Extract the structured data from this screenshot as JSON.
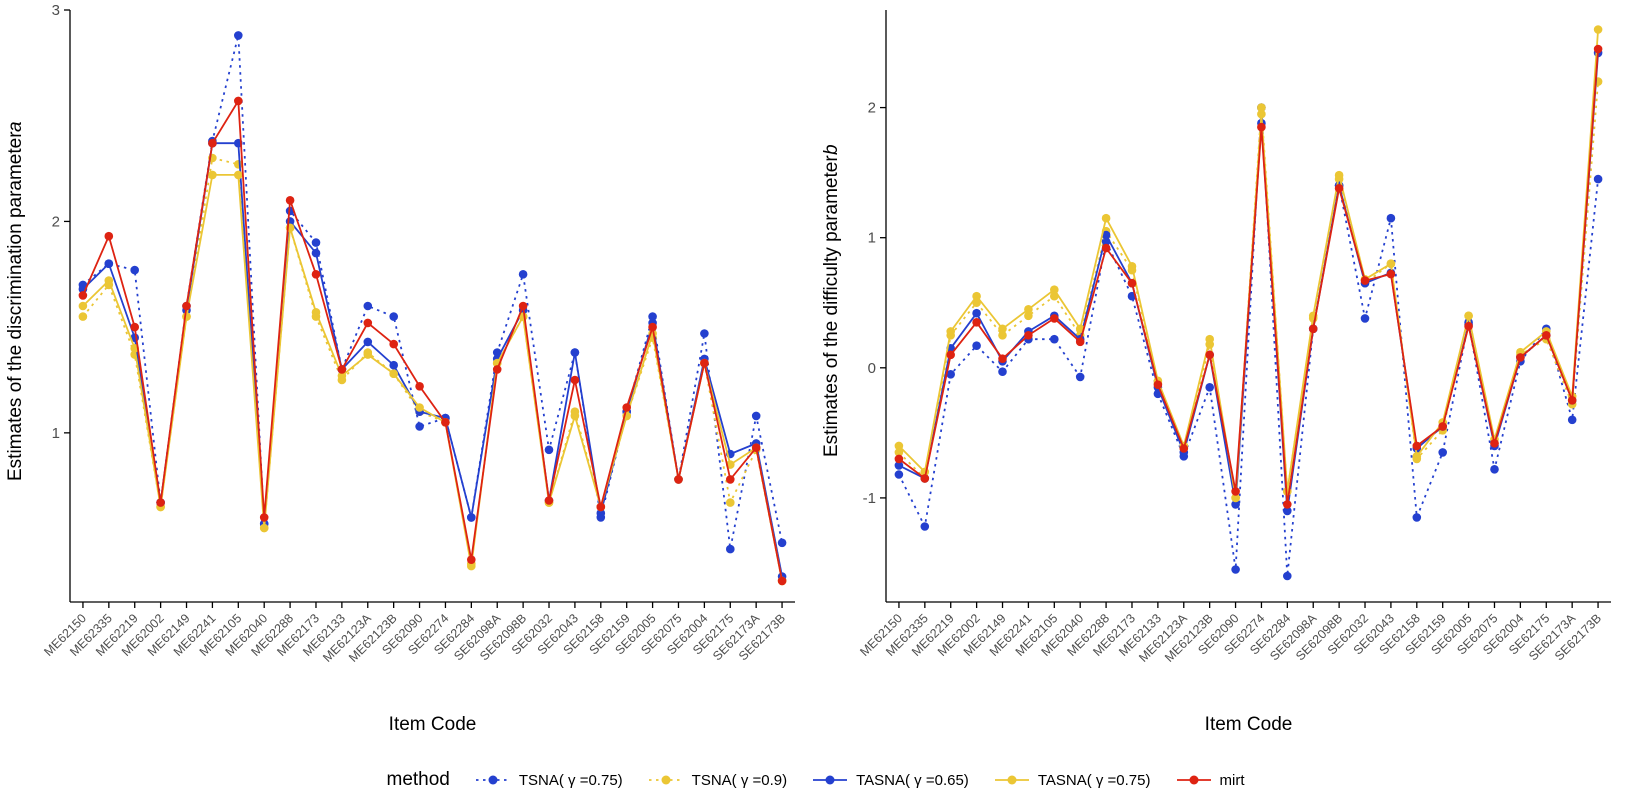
{
  "colors": {
    "blue": "#2440CF",
    "gold": "#EBC634",
    "red": "#DE2312",
    "axis_text": "#4D4D4D",
    "axis_line": "#000000"
  },
  "legend": {
    "title": "method",
    "items": [
      {
        "label": "TSNA( γ =0.75)",
        "color": "#2440CF",
        "dash": "dotted"
      },
      {
        "label": "TSNA( γ =0.9)",
        "color": "#EBC634",
        "dash": "dotted"
      },
      {
        "label": "TASNA( γ =0.65)",
        "color": "#2440CF",
        "dash": "solid"
      },
      {
        "label": "TASNA( γ =0.75)",
        "color": "#EBC634",
        "dash": "solid"
      },
      {
        "label": "mirt",
        "color": "#DE2312",
        "dash": "solid"
      }
    ]
  },
  "chart_data": [
    {
      "type": "line",
      "title": "",
      "ylabel_prefix": "Estimates of the discrimination parameter ",
      "ylabel_var": "a",
      "xlabel": "Item Code",
      "yticks": [
        1,
        2,
        3
      ],
      "ylim": [
        0.2,
        3.0
      ],
      "grid": false,
      "categories": [
        "ME62150",
        "ME62335",
        "ME62219",
        "ME62002",
        "ME62149",
        "ME62241",
        "ME62105",
        "ME62040",
        "ME62288",
        "ME62173",
        "ME62133",
        "ME62123A",
        "ME62123B",
        "SE62090",
        "SE62274",
        "SE62284",
        "SE62098A",
        "SE62098B",
        "SE62032",
        "SE62043",
        "SE62158",
        "SE62159",
        "SE62005",
        "SE62075",
        "SE62004",
        "SE62175",
        "SE62173A",
        "SE62173B"
      ],
      "series": [
        {
          "name": "TSNA( γ =0.75)",
          "color": "#2440CF",
          "dash": "dotted",
          "values": [
            1.7,
            1.8,
            1.77,
            0.67,
            1.6,
            2.38,
            2.88,
            0.57,
            2.05,
            1.9,
            1.3,
            1.6,
            1.55,
            1.03,
            1.07,
            0.6,
            1.38,
            1.75,
            0.92,
            1.38,
            0.6,
            1.1,
            1.55,
            0.78,
            1.47,
            0.45,
            1.08,
            0.48
          ]
        },
        {
          "name": "TSNA( γ =0.9)",
          "color": "#EBC634",
          "dash": "dotted",
          "values": [
            1.55,
            1.7,
            1.37,
            0.65,
            1.55,
            2.3,
            2.27,
            0.55,
            1.97,
            1.55,
            1.25,
            1.38,
            1.28,
            1.1,
            1.05,
            0.38,
            1.33,
            1.55,
            0.67,
            1.1,
            0.65,
            1.08,
            1.45,
            0.78,
            1.33,
            0.67,
            0.92,
            0.3
          ]
        },
        {
          "name": "TASNA( γ =0.65)",
          "color": "#2440CF",
          "dash": "solid",
          "values": [
            1.68,
            1.8,
            1.45,
            0.67,
            1.58,
            2.37,
            2.37,
            0.57,
            2.0,
            1.85,
            1.3,
            1.43,
            1.32,
            1.1,
            1.07,
            0.6,
            1.35,
            1.58,
            0.68,
            1.38,
            0.62,
            1.1,
            1.52,
            0.78,
            1.35,
            0.9,
            0.95,
            0.32
          ]
        },
        {
          "name": "TASNA( γ =0.75)",
          "color": "#EBC634",
          "dash": "solid",
          "values": [
            1.6,
            1.72,
            1.4,
            0.65,
            1.55,
            2.22,
            2.22,
            0.55,
            1.97,
            1.57,
            1.27,
            1.37,
            1.28,
            1.12,
            1.05,
            0.37,
            1.33,
            1.55,
            0.67,
            1.08,
            0.65,
            1.08,
            1.47,
            0.78,
            1.33,
            0.85,
            0.93,
            0.3
          ]
        },
        {
          "name": "mirt",
          "color": "#DE2312",
          "dash": "solid",
          "values": [
            1.65,
            1.93,
            1.5,
            0.67,
            1.6,
            2.37,
            2.57,
            0.6,
            2.1,
            1.75,
            1.3,
            1.52,
            1.42,
            1.22,
            1.05,
            0.4,
            1.3,
            1.6,
            0.68,
            1.25,
            0.65,
            1.12,
            1.5,
            0.78,
            1.33,
            0.78,
            0.93,
            0.3
          ]
        }
      ]
    },
    {
      "type": "line",
      "title": "",
      "ylabel_prefix": "Estimates of the difficulty parameter ",
      "ylabel_var": "b",
      "xlabel": "Item Code",
      "yticks": [
        -1,
        0,
        1,
        2
      ],
      "ylim": [
        -1.8,
        2.75
      ],
      "grid": false,
      "categories": [
        "ME62150",
        "ME62335",
        "ME62219",
        "ME62002",
        "ME62149",
        "ME62241",
        "ME62105",
        "ME62040",
        "ME62288",
        "ME62173",
        "ME62133",
        "ME62123A",
        "ME62123B",
        "SE62090",
        "SE62274",
        "SE62284",
        "SE62098A",
        "SE62098B",
        "SE62032",
        "SE62043",
        "SE62158",
        "SE62159",
        "SE62005",
        "SE62075",
        "SE62004",
        "SE62175",
        "SE62173A",
        "SE62173B"
      ],
      "series": [
        {
          "name": "TSNA( γ =0.75)",
          "color": "#2440CF",
          "dash": "dotted",
          "values": [
            -0.82,
            -1.22,
            -0.05,
            0.17,
            -0.03,
            0.22,
            0.22,
            -0.07,
            0.97,
            0.55,
            -0.2,
            -0.68,
            -0.15,
            -1.55,
            2.0,
            -1.6,
            0.3,
            1.4,
            0.38,
            1.15,
            -1.15,
            -0.65,
            0.35,
            -0.78,
            0.05,
            0.3,
            -0.4,
            1.45
          ]
        },
        {
          "name": "TSNA( γ =0.9)",
          "color": "#EBC634",
          "dash": "dotted",
          "values": [
            -0.65,
            -0.85,
            0.25,
            0.5,
            0.25,
            0.4,
            0.55,
            0.25,
            1.05,
            0.75,
            -0.12,
            -0.62,
            0.18,
            -1.0,
            2.0,
            -0.95,
            0.38,
            1.45,
            0.65,
            0.8,
            -0.7,
            -0.48,
            0.4,
            -0.58,
            0.1,
            0.22,
            -0.28,
            2.2
          ]
        },
        {
          "name": "TASNA( γ =0.65)",
          "color": "#2440CF",
          "dash": "solid",
          "values": [
            -0.75,
            -0.85,
            0.15,
            0.42,
            0.05,
            0.28,
            0.4,
            0.22,
            1.02,
            0.65,
            -0.15,
            -0.65,
            0.1,
            -1.05,
            1.88,
            -1.1,
            0.3,
            1.4,
            0.65,
            0.73,
            -0.62,
            -0.45,
            0.33,
            -0.6,
            0.08,
            0.25,
            -0.25,
            2.42
          ]
        },
        {
          "name": "TASNA( γ =0.75)",
          "color": "#EBC634",
          "dash": "solid",
          "values": [
            -0.6,
            -0.8,
            0.28,
            0.55,
            0.3,
            0.45,
            0.6,
            0.3,
            1.15,
            0.78,
            -0.1,
            -0.6,
            0.22,
            -1.0,
            1.95,
            -0.95,
            0.4,
            1.48,
            0.68,
            0.8,
            -0.68,
            -0.42,
            0.4,
            -0.55,
            0.12,
            0.28,
            -0.22,
            2.6
          ]
        },
        {
          "name": "mirt",
          "color": "#DE2312",
          "dash": "solid",
          "values": [
            -0.7,
            -0.85,
            0.1,
            0.35,
            0.07,
            0.25,
            0.38,
            0.2,
            0.92,
            0.65,
            -0.13,
            -0.62,
            0.1,
            -0.95,
            1.85,
            -1.05,
            0.3,
            1.38,
            0.67,
            0.72,
            -0.6,
            -0.45,
            0.32,
            -0.58,
            0.08,
            0.25,
            -0.25,
            2.45
          ]
        }
      ]
    }
  ]
}
